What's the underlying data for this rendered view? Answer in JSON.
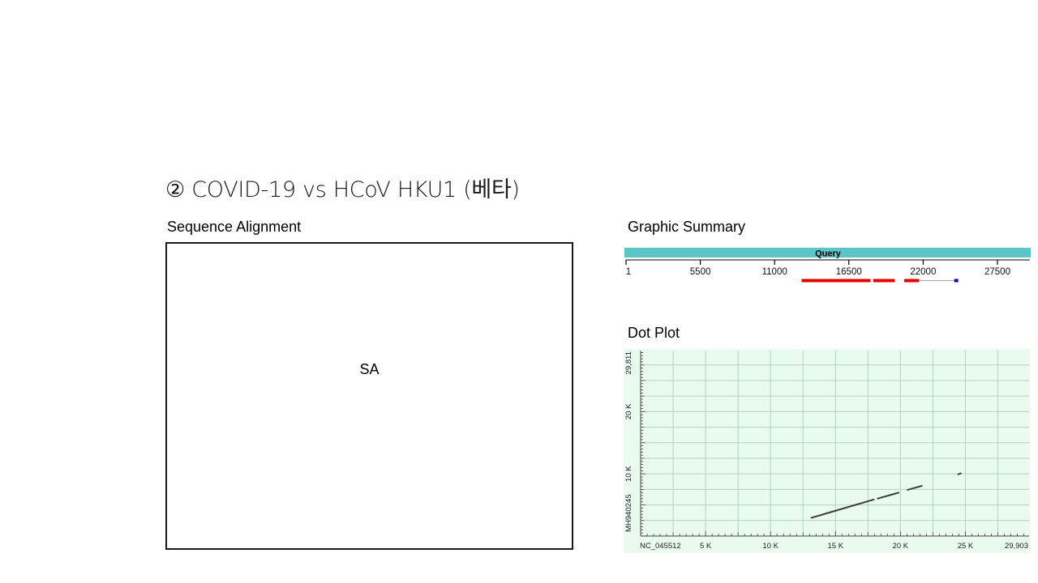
{
  "slide": {
    "title": "② COVID-19 vs HCoV HKU1 (베타)"
  },
  "sequence_alignment": {
    "label": "Sequence Alignment",
    "placeholder": "SA"
  },
  "graphic_summary": {
    "label": "Graphic Summary",
    "query_label": "Query",
    "ruler_ticks": [
      "1",
      "5500",
      "11000",
      "16500",
      "22000",
      "27500"
    ],
    "tick_values": [
      1,
      5500,
      11000,
      16500,
      22000,
      27500
    ],
    "query_length": 29903,
    "hits": [
      {
        "start": 13000,
        "end": 18100,
        "color": "#e60000"
      },
      {
        "start": 18300,
        "end": 19900,
        "color": "#e60000"
      },
      {
        "start": 20600,
        "end": 21700,
        "color": "#e60000"
      },
      {
        "start": 21700,
        "end": 24300,
        "color": "#aaaaaa"
      },
      {
        "start": 24300,
        "end": 24600,
        "color": "#0000dd"
      }
    ],
    "colors": {
      "query_bar": "#5cc6c6"
    }
  },
  "dot_plot": {
    "label": "Dot Plot",
    "x_axis_label": "NC_045512",
    "y_axis_label": "MH940245",
    "x_tick_labels": [
      "5 K",
      "10 K",
      "15 K",
      "20 K",
      "25 K",
      "29,903"
    ],
    "x_tick_values": [
      5000,
      10000,
      15000,
      20000,
      25000,
      29903
    ],
    "y_tick_labels": [
      "10 K",
      "20 K",
      "29,811"
    ],
    "y_tick_values": [
      10000,
      20000,
      29811
    ],
    "x_max": 29903,
    "y_max": 29811,
    "segments": [
      {
        "x1": 13100,
        "y1": 2900,
        "x2": 18000,
        "y2": 5900
      },
      {
        "x1": 18200,
        "y1": 6000,
        "x2": 19900,
        "y2": 7000
      },
      {
        "x1": 20500,
        "y1": 7400,
        "x2": 21700,
        "y2": 8100
      },
      {
        "x1": 24400,
        "y1": 9900,
        "x2": 24700,
        "y2": 10100
      }
    ],
    "colors": {
      "background": "#e8fbee",
      "grid": "#b4d2be",
      "line": "#3c3c3c"
    }
  }
}
